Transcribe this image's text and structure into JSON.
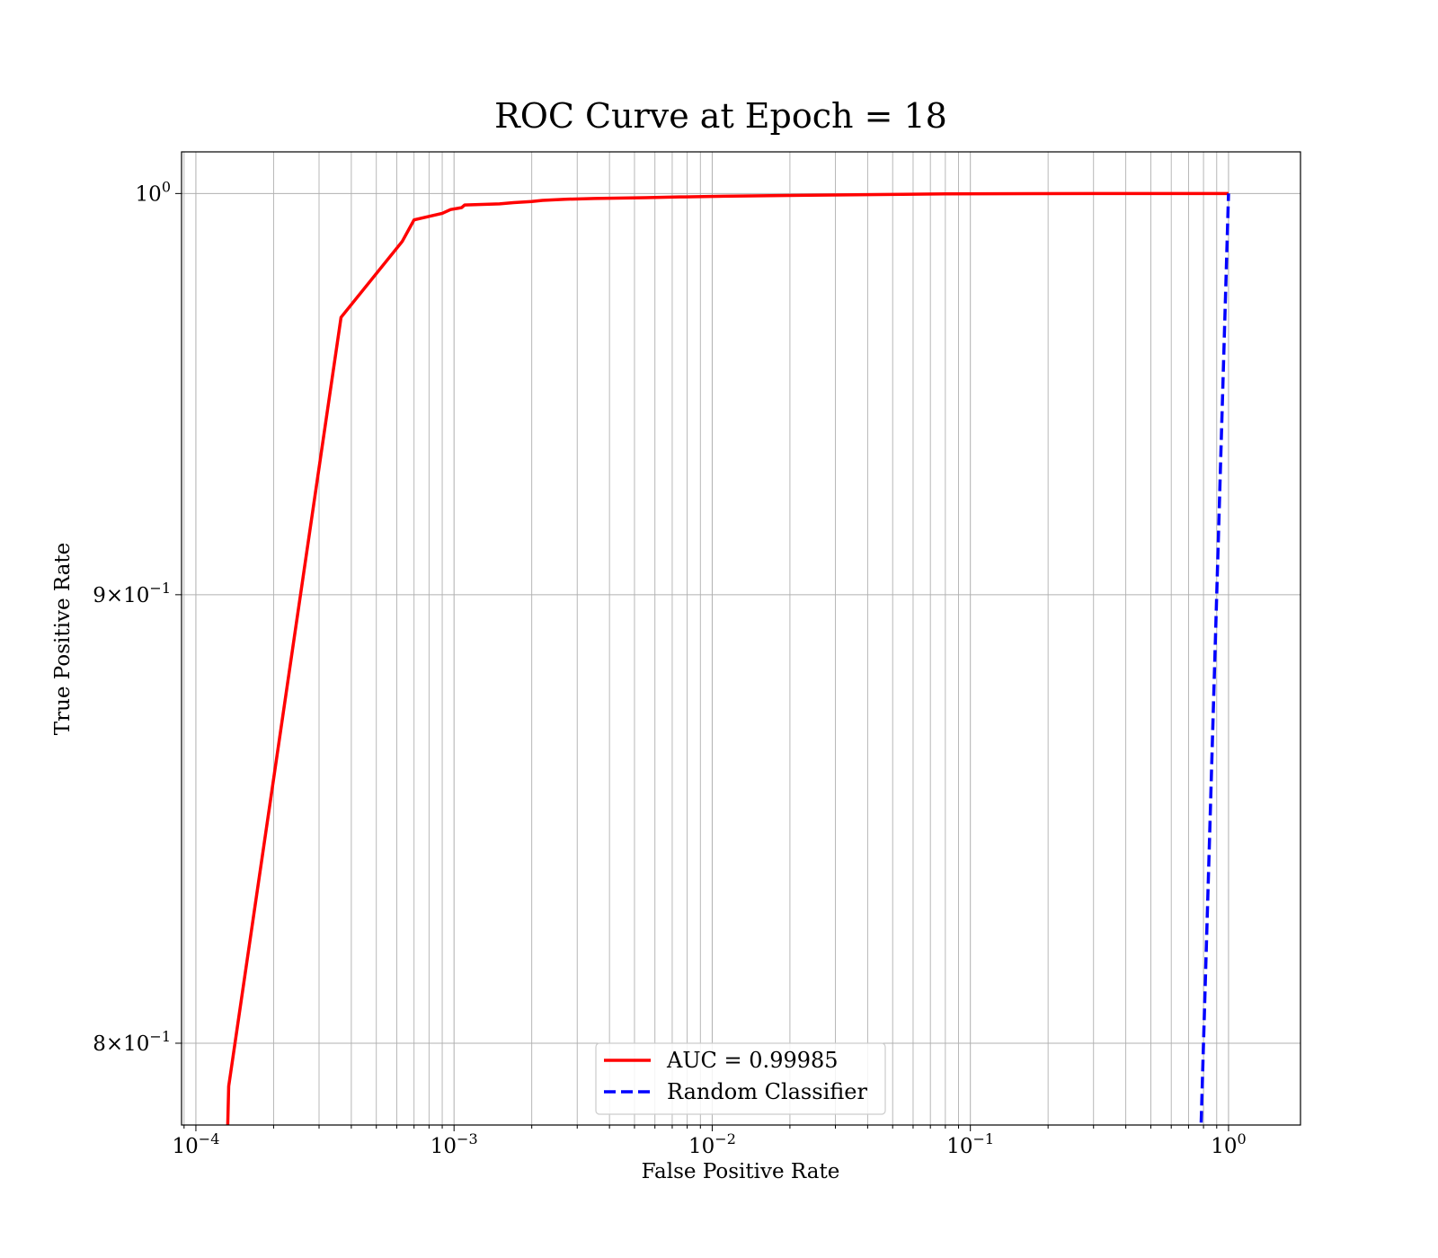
{
  "chart_data": {
    "type": "line",
    "title": "ROC Curve at Epoch = 18",
    "xlabel": "False Positive Rate",
    "ylabel": "True Positive Rate",
    "xscale": "log",
    "yscale": "log",
    "xlim": [
      8.8e-05,
      1.9
    ],
    "ylim": [
      0.783,
      1.011
    ],
    "grid": "both (major and minor on x)",
    "legend_position": "lower center",
    "x_ticks": [
      {
        "value": 0.0001,
        "base": "10",
        "exp": "−4"
      },
      {
        "value": 0.001,
        "base": "10",
        "exp": "−3"
      },
      {
        "value": 0.01,
        "base": "10",
        "exp": "−2"
      },
      {
        "value": 0.1,
        "base": "10",
        "exp": "−1"
      },
      {
        "value": 1,
        "base": "10",
        "exp": "0"
      }
    ],
    "y_ticks": [
      {
        "value": 1.0,
        "mant": "",
        "base": "10",
        "exp": "0"
      },
      {
        "value": 0.9,
        "mant": "9×",
        "base": "10",
        "exp": "−1"
      },
      {
        "value": 0.8,
        "mant": "8×",
        "base": "10",
        "exp": "−1"
      }
    ],
    "series": [
      {
        "name": "AUC = 0.99985",
        "color": "#ff0000",
        "style": "solid",
        "x": [
          0.000132,
          0.000134,
          0.000365,
          0.00063,
          0.0007,
          0.0009,
          0.00097,
          0.00107,
          0.0011,
          0.0015,
          0.0017,
          0.002,
          0.0022,
          0.0027,
          0.0035,
          0.0055,
          0.0075,
          0.011,
          0.02,
          0.04,
          0.08,
          0.3,
          1.0
        ],
        "y": [
          0.777,
          0.791,
          0.968,
          0.9875,
          0.9931,
          0.9948,
          0.9958,
          0.9963,
          0.997,
          0.9973,
          0.9976,
          0.9979,
          0.9982,
          0.9985,
          0.9987,
          0.9989,
          0.9991,
          0.9993,
          0.9995,
          0.9997,
          0.9999,
          1.0,
          1.0
        ]
      },
      {
        "name": "Random Classifier",
        "color": "#0000ff",
        "style": "dashed",
        "x": [
          0.78,
          1.0
        ],
        "y": [
          0.78,
          1.0
        ]
      }
    ]
  }
}
